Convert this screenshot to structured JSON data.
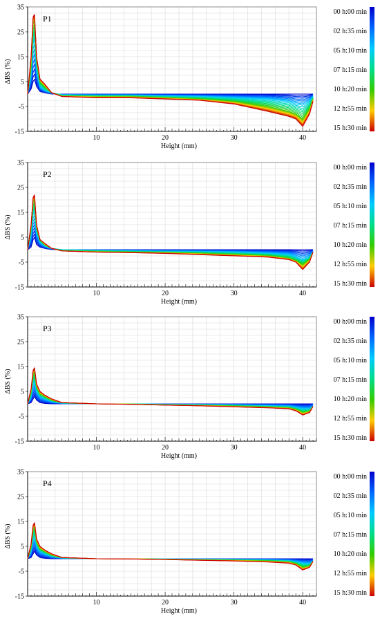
{
  "figure": {
    "panels": [
      "P1",
      "P2",
      "P3",
      "P4"
    ]
  },
  "colorbar": {
    "labels": [
      "00 h:00 min",
      "02 h:35 min",
      "05 h:10 min",
      "07 h:15 min",
      "10 h:20 min",
      "12 h:55 min",
      "15 h:30 min"
    ],
    "colors": [
      "#0000cc",
      "#0066ff",
      "#00ccff",
      "#00dd88",
      "#33cc00",
      "#ffcc00",
      "#cc0000"
    ]
  },
  "chart_data": [
    {
      "type": "line",
      "panel_label": "P1",
      "xlabel": "Height (mm)",
      "ylabel": "ΔBS (%)",
      "xlim": [
        0,
        42
      ],
      "ylim": [
        -15,
        35
      ],
      "xticks": [
        10,
        20,
        30,
        40
      ],
      "yticks": [
        35,
        25,
        15,
        5,
        -5,
        -15
      ],
      "grid": true,
      "x": [
        0,
        0.5,
        0.8,
        1.0,
        1.3,
        1.8,
        2.5,
        3.5,
        5,
        10,
        15,
        20,
        25,
        30,
        35,
        38,
        39,
        40,
        41,
        41.5
      ],
      "series": [
        {
          "time": "00 h:00 min",
          "values": [
            0,
            2,
            5,
            6,
            3,
            1,
            0.5,
            0,
            0,
            0,
            0,
            0,
            0,
            0,
            0,
            0,
            0,
            0,
            0,
            0
          ]
        },
        {
          "time": "05 h:10 min",
          "values": [
            0,
            8,
            20,
            22,
            10,
            3,
            1.5,
            0.5,
            -0.3,
            -0.5,
            -0.5,
            -0.8,
            -1,
            -1.5,
            -2,
            -3,
            -4,
            -4.5,
            -3,
            -1
          ]
        },
        {
          "time": "10 h:20 min",
          "values": [
            0,
            12,
            28,
            29,
            14,
            5,
            3,
            0.5,
            -0.8,
            -1,
            -1,
            -1.5,
            -2,
            -3,
            -5,
            -7,
            -8,
            -10,
            -6,
            -2
          ]
        },
        {
          "time": "15 h:30 min",
          "values": [
            0,
            15,
            31,
            32,
            15,
            6,
            4,
            0.5,
            -1,
            -1.5,
            -1.5,
            -2,
            -2.5,
            -4,
            -7,
            -9,
            -10,
            -13,
            -8,
            -3
          ]
        }
      ]
    },
    {
      "type": "line",
      "panel_label": "P2",
      "xlabel": "Height (mm)",
      "ylabel": "ΔBS (%)",
      "xlim": [
        0,
        42
      ],
      "ylim": [
        -15,
        35
      ],
      "xticks": [
        10,
        20,
        30,
        40
      ],
      "yticks": [
        35,
        25,
        15,
        5,
        -5,
        -15
      ],
      "grid": true,
      "x": [
        0,
        0.5,
        0.8,
        1.0,
        1.3,
        1.8,
        2.5,
        3.5,
        5,
        10,
        15,
        20,
        25,
        30,
        35,
        38,
        39,
        40,
        41,
        41.5
      ],
      "series": [
        {
          "time": "00 h:00 min",
          "values": [
            0,
            1,
            4,
            5,
            2,
            1,
            0.5,
            0,
            0,
            0,
            0,
            0,
            0,
            0,
            0,
            0,
            0,
            0,
            0,
            0
          ]
        },
        {
          "time": "05 h:10 min",
          "values": [
            0,
            6,
            14,
            15,
            7,
            3,
            1.5,
            0.5,
            0,
            -0.3,
            -0.5,
            -0.7,
            -0.8,
            -1,
            -1.5,
            -2,
            -3,
            -4,
            -3,
            -1
          ]
        },
        {
          "time": "10 h:20 min",
          "values": [
            0,
            9,
            19,
            20,
            9,
            4,
            2,
            0.5,
            -0.5,
            -0.8,
            -1,
            -1.2,
            -1.5,
            -2,
            -2.5,
            -3.5,
            -4.5,
            -6,
            -4,
            -1
          ]
        },
        {
          "time": "15 h:30 min",
          "values": [
            0,
            10,
            21,
            22,
            10,
            4,
            2.5,
            0.5,
            -0.5,
            -1,
            -1.2,
            -1.5,
            -2,
            -2.5,
            -3,
            -4,
            -5,
            -8,
            -5,
            -1
          ]
        }
      ]
    },
    {
      "type": "line",
      "panel_label": "P3",
      "xlabel": "Height (mm)",
      "ylabel": "ΔBS (%)",
      "xlim": [
        0,
        42
      ],
      "ylim": [
        -15,
        35
      ],
      "xticks": [
        10,
        20,
        30,
        40
      ],
      "yticks": [
        35,
        25,
        15,
        5,
        -5,
        -15
      ],
      "grid": true,
      "x": [
        0,
        0.5,
        0.8,
        1.0,
        1.3,
        1.8,
        2.5,
        3.5,
        5,
        10,
        15,
        20,
        25,
        30,
        35,
        38,
        39,
        40,
        41,
        41.5
      ],
      "series": [
        {
          "time": "00 h:00 min",
          "values": [
            0,
            0.5,
            2,
            3,
            1.5,
            0.5,
            0.2,
            0,
            0,
            0,
            0,
            0,
            0,
            0,
            0,
            0,
            0,
            0,
            0,
            0
          ]
        },
        {
          "time": "05 h:10 min",
          "values": [
            0,
            3,
            8,
            9,
            5,
            3,
            2,
            1,
            0.3,
            0,
            0,
            -0.2,
            -0.3,
            -0.5,
            -0.8,
            -1,
            -1.5,
            -2,
            -2,
            -1
          ]
        },
        {
          "time": "10 h:20 min",
          "values": [
            0,
            5,
            12,
            13,
            7,
            4,
            3,
            1.5,
            0.5,
            0,
            -0.1,
            -0.4,
            -0.6,
            -0.9,
            -1.3,
            -1.6,
            -2.2,
            -3.5,
            -3,
            -1
          ]
        },
        {
          "time": "15 h:30 min",
          "values": [
            0,
            6,
            13.5,
            14.5,
            8,
            5,
            3.5,
            2,
            0.5,
            0,
            -0.2,
            -0.5,
            -0.8,
            -1.2,
            -1.6,
            -2,
            -2.8,
            -4.5,
            -3.5,
            -1
          ]
        }
      ]
    },
    {
      "type": "line",
      "panel_label": "P4",
      "xlabel": "Height (mm)",
      "ylabel": "ΔBS (%)",
      "xlim": [
        0,
        42
      ],
      "ylim": [
        -15,
        35
      ],
      "xticks": [
        10,
        20,
        30,
        40
      ],
      "yticks": [
        35,
        25,
        15,
        5,
        -5,
        -15
      ],
      "grid": true,
      "x": [
        0,
        0.5,
        0.8,
        1.0,
        1.3,
        1.8,
        2.5,
        3.5,
        5,
        10,
        15,
        20,
        25,
        30,
        35,
        38,
        39,
        40,
        41,
        41.5
      ],
      "series": [
        {
          "time": "00 h:00 min",
          "values": [
            0,
            0.5,
            2,
            3,
            1.5,
            0.5,
            0.2,
            0,
            0,
            0,
            0,
            0,
            0,
            0,
            0,
            0,
            0,
            0,
            0,
            0
          ]
        },
        {
          "time": "05 h:10 min",
          "values": [
            0,
            3,
            8,
            9,
            5,
            3,
            2,
            1,
            0.3,
            0,
            0,
            -0.1,
            -0.2,
            -0.3,
            -0.5,
            -0.8,
            -1.2,
            -1.8,
            -2,
            -1
          ]
        },
        {
          "time": "10 h:20 min",
          "values": [
            0,
            5,
            12,
            13,
            7,
            4,
            3,
            1.5,
            0.5,
            0,
            0,
            -0.2,
            -0.4,
            -0.6,
            -0.9,
            -1.3,
            -2,
            -3.5,
            -3,
            -1
          ]
        },
        {
          "time": "15 h:30 min",
          "values": [
            0,
            6,
            13.5,
            14.5,
            8,
            5,
            3.5,
            2,
            0.5,
            0,
            -0.1,
            -0.3,
            -0.6,
            -0.9,
            -1.3,
            -1.8,
            -2.5,
            -4.5,
            -3.5,
            -1
          ]
        }
      ]
    }
  ]
}
